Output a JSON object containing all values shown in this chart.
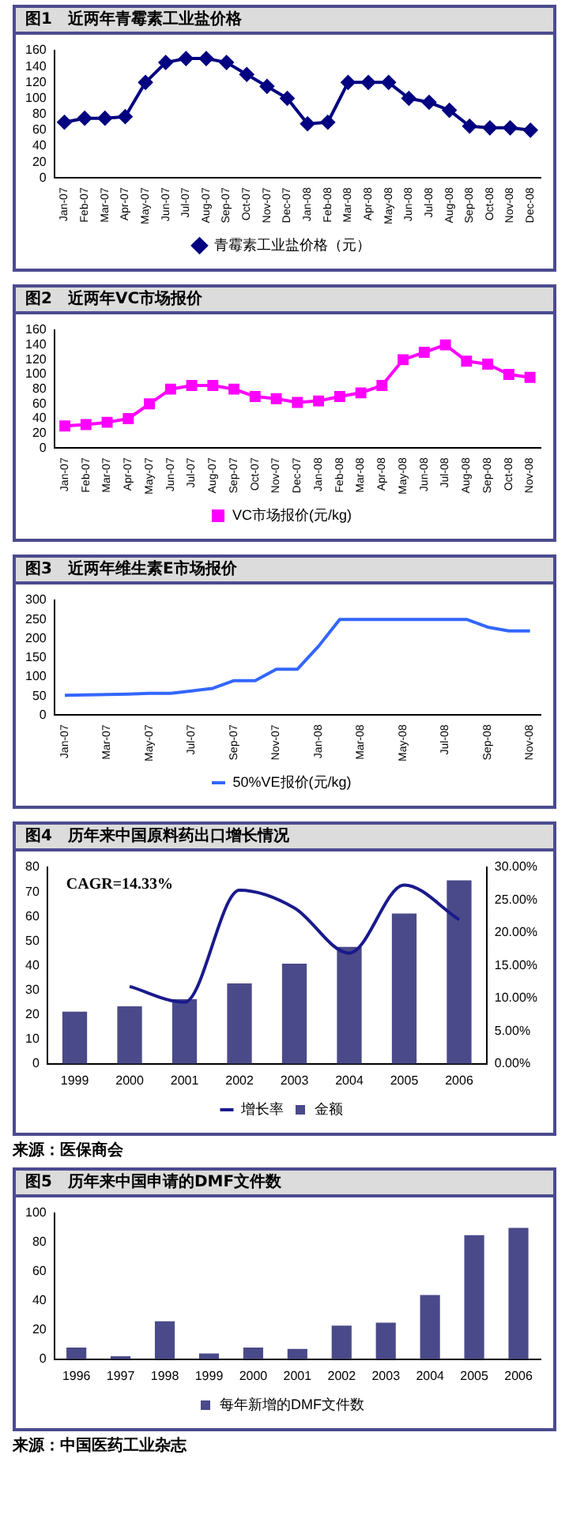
{
  "chart_data": [
    {
      "type": "line",
      "title": "图1　近两年青霉素工业盐价格",
      "categories": [
        "Jan-07",
        "Feb-07",
        "Mar-07",
        "Apr-07",
        "May-07",
        "Jun-07",
        "Jul-07",
        "Aug-07",
        "Sep-07",
        "Oct-07",
        "Nov-07",
        "Dec-07",
        "Jan-08",
        "Feb-08",
        "Mar-08",
        "Apr-08",
        "May-08",
        "Jun-08",
        "Jul-08",
        "Aug-08",
        "Sep-08",
        "Oct-08",
        "Nov-08",
        "Dec-08"
      ],
      "ylim": [
        0,
        160
      ],
      "yticks": [
        0,
        20,
        40,
        60,
        80,
        100,
        120,
        140,
        160
      ],
      "marker": "diamond",
      "legend": "bottom",
      "series": [
        {
          "name": "青霉素工业盐价格（元）",
          "color": "#000080",
          "values": [
            70,
            75,
            75,
            77,
            120,
            145,
            150,
            150,
            145,
            130,
            115,
            100,
            68,
            70,
            120,
            120,
            120,
            100,
            95,
            85,
            65,
            63,
            63,
            60
          ]
        }
      ]
    },
    {
      "type": "line",
      "title": "图2　近两年VC市场报价",
      "categories": [
        "Jan-07",
        "Feb-07",
        "Mar-07",
        "Apr-07",
        "May-07",
        "Jun-07",
        "Jul-07",
        "Aug-07",
        "Sep-07",
        "Oct-07",
        "Nov-07",
        "Dec-07",
        "Jan-08",
        "Feb-08",
        "Mar-08",
        "Apr-08",
        "May-08",
        "Jun-08",
        "Jul-08",
        "Aug-08",
        "Sep-08",
        "Oct-08",
        "Nov-08"
      ],
      "ylim": [
        0,
        160
      ],
      "yticks": [
        0,
        20,
        40,
        60,
        80,
        100,
        120,
        140,
        160
      ],
      "marker": "square",
      "legend": "bottom",
      "series": [
        {
          "name": "VC市场报价(元/kg)",
          "color": "#ff00ff",
          "values": [
            30,
            32,
            35,
            40,
            60,
            80,
            85,
            85,
            80,
            70,
            67,
            62,
            64,
            70,
            75,
            85,
            120,
            130,
            140,
            118,
            114,
            100,
            96
          ]
        }
      ]
    },
    {
      "type": "line",
      "title": "图3　近两年维生素E市场报价",
      "categories": [
        "Jan-07",
        null,
        "Mar-07",
        null,
        "May-07",
        null,
        "Jul-07",
        null,
        "Sep-07",
        null,
        "Nov-07",
        null,
        "Jan-08",
        null,
        "Mar-08",
        null,
        "May-08",
        null,
        "Jul-08",
        null,
        "Sep-08",
        null,
        "Nov-08"
      ],
      "ylim": [
        0,
        300
      ],
      "yticks": [
        0,
        50,
        100,
        150,
        200,
        250,
        300
      ],
      "marker": "none",
      "legend": "bottom",
      "series": [
        {
          "name": "50%VE报价(元/kg)",
          "color": "#3366ff",
          "values": [
            52,
            53,
            54,
            55,
            57,
            57,
            63,
            70,
            90,
            90,
            120,
            120,
            180,
            250,
            250,
            250,
            250,
            250,
            250,
            250,
            230,
            220,
            220
          ]
        }
      ]
    },
    {
      "type": "bar",
      "title": "图4　历年来中国原料药出口增长情况",
      "categories": [
        "1999",
        "2000",
        "2001",
        "2002",
        "2003",
        "2004",
        "2005",
        "2006"
      ],
      "ylim": [
        0,
        80
      ],
      "yticks": [
        0,
        10,
        20,
        30,
        40,
        50,
        60,
        70,
        80
      ],
      "y2lim": [
        0,
        30
      ],
      "y2ticks": [
        {
          "value": 0,
          "label": "0.00%"
        },
        {
          "value": 5,
          "label": "5.00%"
        },
        {
          "value": 10,
          "label": "10.00%"
        },
        {
          "value": 15,
          "label": "15.00%"
        },
        {
          "value": 20,
          "label": "20.00%"
        },
        {
          "value": 25,
          "label": "25.00%"
        },
        {
          "value": 30,
          "label": "30.00%"
        }
      ],
      "marker": "none",
      "legend": "bottom",
      "annotations": [
        "CAGR=14.33%",
        "来源：医保商会"
      ],
      "series": [
        {
          "name": "金额",
          "color": "#4a4a8a",
          "values": [
            21.2,
            23.4,
            26.3,
            32.7,
            40.8,
            47.6,
            61.2,
            74.7
          ]
        },
        {
          "name": "增长率",
          "type": "line",
          "axis": "y2",
          "color": "#1a1a8c",
          "values": [
            null,
            11.8,
            9.4,
            26.5,
            23.8,
            16.9,
            27.3,
            22.0
          ]
        }
      ]
    },
    {
      "type": "bar",
      "title": "图5　历年来中国申请的DMF文件数",
      "categories": [
        "1996",
        "1997",
        "1998",
        "1999",
        "2000",
        "2001",
        "2002",
        "2003",
        "2004",
        "2005",
        "2006"
      ],
      "ylim": [
        0,
        100
      ],
      "yticks": [
        0,
        20,
        40,
        60,
        80,
        100
      ],
      "legend": "bottom",
      "annotations": [
        "来源：中国医药工业杂志"
      ],
      "series": [
        {
          "name": "每年新增的DMF文件数",
          "color": "#4a4a8a",
          "values": [
            8,
            2,
            26,
            4,
            8,
            7,
            23,
            25,
            44,
            85,
            90
          ]
        }
      ]
    }
  ]
}
